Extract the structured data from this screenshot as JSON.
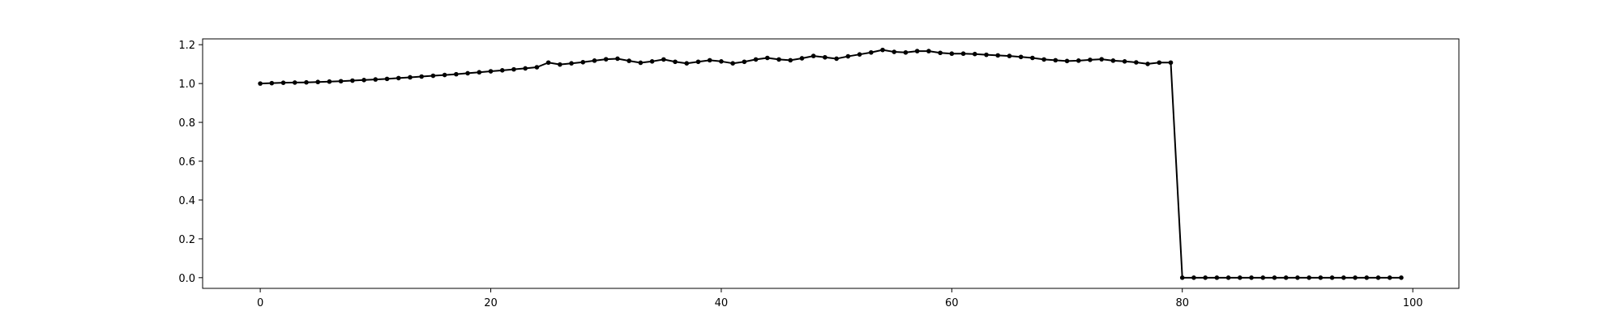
{
  "chart_data": {
    "type": "line",
    "title": "",
    "xlabel": "",
    "ylabel": "",
    "xlim": [
      -5,
      104
    ],
    "ylim": [
      -0.055,
      1.23
    ],
    "xticks": [
      0,
      20,
      40,
      60,
      80,
      100
    ],
    "yticks": [
      0.0,
      0.2,
      0.4,
      0.6,
      0.8,
      1.0,
      1.2
    ],
    "xtick_labels": [
      "0",
      "20",
      "40",
      "60",
      "80",
      "100"
    ],
    "ytick_labels": [
      "0.0",
      "0.2",
      "0.4",
      "0.6",
      "0.8",
      "1.0",
      "1.2"
    ],
    "grid": false,
    "legend": "none",
    "series": [
      {
        "color": "#000000",
        "marker": "circle",
        "x": [
          0,
          1,
          2,
          3,
          4,
          5,
          6,
          7,
          8,
          9,
          10,
          11,
          12,
          13,
          14,
          15,
          16,
          17,
          18,
          19,
          20,
          21,
          22,
          23,
          24,
          25,
          26,
          27,
          28,
          29,
          30,
          31,
          32,
          33,
          34,
          35,
          36,
          37,
          38,
          39,
          40,
          41,
          42,
          43,
          44,
          45,
          46,
          47,
          48,
          49,
          50,
          51,
          52,
          53,
          54,
          55,
          56,
          57,
          58,
          59,
          60,
          61,
          62,
          63,
          64,
          65,
          66,
          67,
          68,
          69,
          70,
          71,
          72,
          73,
          74,
          75,
          76,
          77,
          78,
          79,
          80,
          81,
          82,
          83,
          84,
          85,
          86,
          87,
          88,
          89,
          90,
          91,
          92,
          93,
          94,
          95,
          96,
          97,
          98,
          99
        ],
        "values": [
          1.0,
          1.002,
          1.004,
          1.005,
          1.006,
          1.008,
          1.01,
          1.012,
          1.015,
          1.018,
          1.021,
          1.024,
          1.028,
          1.032,
          1.036,
          1.04,
          1.044,
          1.048,
          1.053,
          1.058,
          1.063,
          1.068,
          1.073,
          1.078,
          1.084,
          1.108,
          1.098,
          1.104,
          1.11,
          1.118,
          1.125,
          1.128,
          1.117,
          1.107,
          1.114,
          1.124,
          1.112,
          1.104,
          1.112,
          1.12,
          1.114,
          1.104,
          1.112,
          1.124,
          1.132,
          1.124,
          1.12,
          1.13,
          1.142,
          1.135,
          1.128,
          1.14,
          1.15,
          1.16,
          1.173,
          1.163,
          1.16,
          1.167,
          1.167,
          1.158,
          1.154,
          1.154,
          1.152,
          1.148,
          1.145,
          1.142,
          1.137,
          1.132,
          1.124,
          1.12,
          1.116,
          1.118,
          1.122,
          1.125,
          1.118,
          1.114,
          1.109,
          1.101,
          1.108,
          1.108,
          0.0,
          0.0,
          0.0,
          0.0,
          0.0,
          0.0,
          0.0,
          0.0,
          0.0,
          0.0,
          0.0,
          0.0,
          0.0,
          0.0,
          0.0,
          0.0,
          0.0,
          0.0,
          0.0,
          0.0
        ]
      }
    ]
  }
}
